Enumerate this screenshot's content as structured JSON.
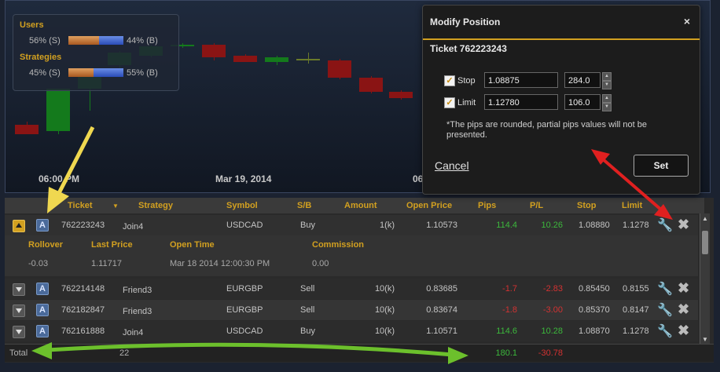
{
  "chart": {
    "x_labels": [
      "06:00 PM",
      "Mar 19, 2014",
      "06"
    ]
  },
  "stats": {
    "users_title": "Users",
    "users_sell": "56% (S)",
    "users_buy": "44% (B)",
    "users_sell_fraction": 0.56,
    "strategies_title": "Strategies",
    "strategies_sell": "45% (S)",
    "strategies_buy": "55% (B)",
    "strategies_sell_fraction": 0.45
  },
  "table": {
    "headers": [
      "Ticket",
      "Strategy",
      "Symbol",
      "S/B",
      "Amount",
      "Open Price",
      "Pips",
      "P/L",
      "Stop",
      "Limit"
    ],
    "expanded_row": {
      "ticket": "762223243",
      "strategy": "Join4",
      "symbol": "USDCAD",
      "side": "Buy",
      "amount": "1(k)",
      "open_price": "1.10573",
      "pips": "114.4",
      "pl": "10.26",
      "stop": "1.08880",
      "limit": "1.1278"
    },
    "detail_headers": [
      "Rollover",
      "Last Price",
      "Open Time",
      "Commission"
    ],
    "detail_values": [
      "-0.03",
      "1.11717",
      "Mar 18 2014 12:00:30 PM",
      "0.00"
    ],
    "rows": [
      {
        "ticket": "762214148",
        "strategy": "Friend3",
        "symbol": "EURGBP",
        "side": "Sell",
        "amount": "10(k)",
        "open_price": "0.83685",
        "pips": "-1.7",
        "pl": "-2.83",
        "stop": "0.85450",
        "limit": "0.8155"
      },
      {
        "ticket": "762182847",
        "strategy": "Friend3",
        "symbol": "EURGBP",
        "side": "Sell",
        "amount": "10(k)",
        "open_price": "0.83674",
        "pips": "-1.8",
        "pl": "-3.00",
        "stop": "0.85370",
        "limit": "0.8147"
      },
      {
        "ticket": "762161888",
        "strategy": "Join4",
        "symbol": "USDCAD",
        "side": "Buy",
        "amount": "10(k)",
        "open_price": "1.10571",
        "pips": "114.6",
        "pl": "10.28",
        "stop": "1.08870",
        "limit": "1.1278"
      }
    ],
    "badge_label": "A",
    "footer": {
      "label": "Total",
      "count": "22",
      "pips": "180.1",
      "pl": "-30.78"
    }
  },
  "dialog": {
    "title": "Modify Position",
    "close_glyph": "×",
    "ticket_label": "Ticket 762223243",
    "stop_label": "Stop",
    "stop_price": "1.08875",
    "stop_pips": "284.0",
    "limit_label": "Limit",
    "limit_price": "1.12780",
    "limit_pips": "106.0",
    "note": "*The pips are rounded, partial pips values will not be presented.",
    "cancel_label": "Cancel",
    "set_label": "Set"
  },
  "colors": {
    "accent": "#d2a020",
    "positive": "#3cb83c",
    "negative": "#d23232"
  }
}
